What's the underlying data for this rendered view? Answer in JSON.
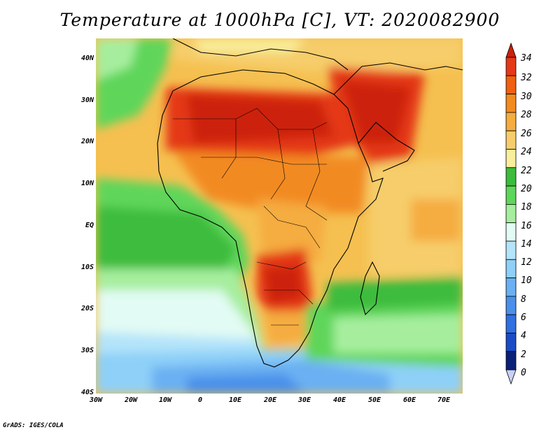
{
  "title": "Temperature at 1000hPa [C], VT: 2020082900",
  "credit": "GrADS: IGES/COLA",
  "lat_labels": [
    "40N",
    "30N",
    "20N",
    "10N",
    "EQ",
    "10S",
    "20S",
    "30S",
    "40S"
  ],
  "lon_labels": [
    "30W",
    "20W",
    "10W",
    "0",
    "10E",
    "20E",
    "30E",
    "40E",
    "50E",
    "60E",
    "70E"
  ],
  "colorbar": {
    "labels": [
      "34",
      "32",
      "30",
      "28",
      "26",
      "24",
      "22",
      "20",
      "18",
      "16",
      "14",
      "12",
      "10",
      "8",
      "6",
      "4",
      "2",
      "0"
    ],
    "colors": [
      "#cc2008",
      "#e43818",
      "#f06010",
      "#f28a20",
      "#f5ac40",
      "#f6cd6a",
      "#f9ee9c",
      "#3cbc3c",
      "#5ed65a",
      "#a6ee9e",
      "#e2fbf4",
      "#b4e4fa",
      "#8ed0f8",
      "#6ab0f2",
      "#4a90ea",
      "#3070e0",
      "#1a4cc8",
      "#0a2078",
      "#c8d0f8"
    ]
  }
}
